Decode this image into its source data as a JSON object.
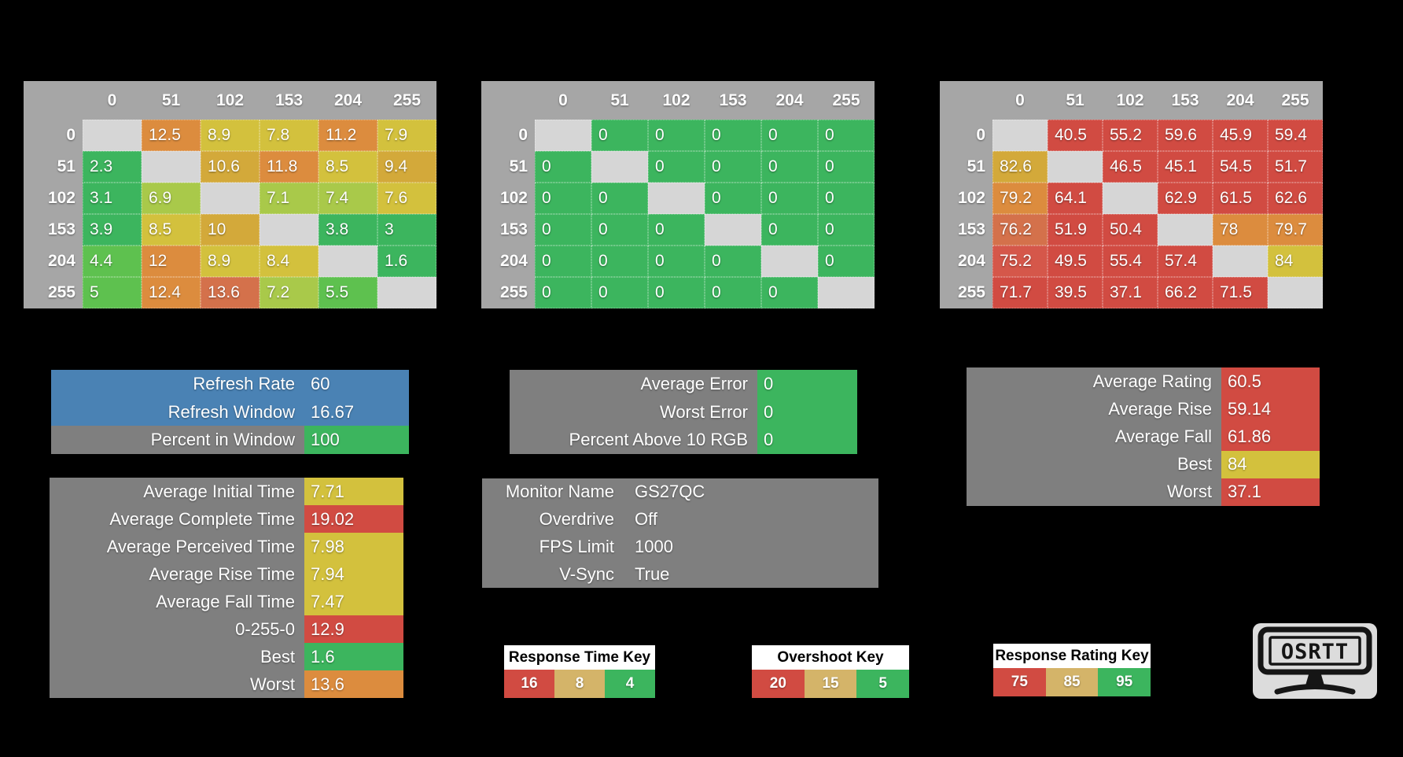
{
  "palette": {
    "green": "#3cb55e",
    "green2": "#5ec14f",
    "ygreen": "#a9c94a",
    "yellow": "#d3c13d",
    "gold": "#d3a93a",
    "orange": "#dc8c3e",
    "orangered": "#d4714b",
    "red": "#d14b42",
    "red2": "#d5574a",
    "tan": "#d4b469",
    "diag": "#d6d6d6",
    "headerGray": "#a6a6a6",
    "panelGray": "#7f7f7f",
    "blue": "#4a82b4"
  },
  "tables": [
    {
      "id": "response-time",
      "cols": [
        "0",
        "51",
        "102",
        "153",
        "204",
        "255"
      ],
      "rows": [
        "0",
        "51",
        "102",
        "153",
        "204",
        "255"
      ],
      "cells": [
        [
          null,
          [
            "12.5",
            "orange"
          ],
          [
            "8.9",
            "yellow"
          ],
          [
            "7.8",
            "yellow"
          ],
          [
            "11.2",
            "orange"
          ],
          [
            "7.9",
            "yellow"
          ]
        ],
        [
          [
            "2.3",
            "green"
          ],
          null,
          [
            "10.6",
            "gold"
          ],
          [
            "11.8",
            "orange"
          ],
          [
            "8.5",
            "yellow"
          ],
          [
            "9.4",
            "gold"
          ]
        ],
        [
          [
            "3.1",
            "green"
          ],
          [
            "6.9",
            "ygreen"
          ],
          null,
          [
            "7.1",
            "ygreen"
          ],
          [
            "7.4",
            "ygreen"
          ],
          [
            "7.6",
            "yellow"
          ]
        ],
        [
          [
            "3.9",
            "green"
          ],
          [
            "8.5",
            "yellow"
          ],
          [
            "10",
            "gold"
          ],
          null,
          [
            "3.8",
            "green"
          ],
          [
            "3",
            "green"
          ]
        ],
        [
          [
            "4.4",
            "green2"
          ],
          [
            "12",
            "orange"
          ],
          [
            "8.9",
            "yellow"
          ],
          [
            "8.4",
            "yellow"
          ],
          null,
          [
            "1.6",
            "green"
          ]
        ],
        [
          [
            "5",
            "green2"
          ],
          [
            "12.4",
            "orange"
          ],
          [
            "13.6",
            "orangered"
          ],
          [
            "7.2",
            "ygreen"
          ],
          [
            "5.5",
            "green2"
          ],
          null
        ]
      ]
    },
    {
      "id": "overshoot",
      "cols": [
        "0",
        "51",
        "102",
        "153",
        "204",
        "255"
      ],
      "rows": [
        "0",
        "51",
        "102",
        "153",
        "204",
        "255"
      ],
      "cells": [
        [
          null,
          [
            "0",
            "green"
          ],
          [
            "0",
            "green"
          ],
          [
            "0",
            "green"
          ],
          [
            "0",
            "green"
          ],
          [
            "0",
            "green"
          ]
        ],
        [
          [
            "0",
            "green"
          ],
          null,
          [
            "0",
            "green"
          ],
          [
            "0",
            "green"
          ],
          [
            "0",
            "green"
          ],
          [
            "0",
            "green"
          ]
        ],
        [
          [
            "0",
            "green"
          ],
          [
            "0",
            "green"
          ],
          null,
          [
            "0",
            "green"
          ],
          [
            "0",
            "green"
          ],
          [
            "0",
            "green"
          ]
        ],
        [
          [
            "0",
            "green"
          ],
          [
            "0",
            "green"
          ],
          [
            "0",
            "green"
          ],
          null,
          [
            "0",
            "green"
          ],
          [
            "0",
            "green"
          ]
        ],
        [
          [
            "0",
            "green"
          ],
          [
            "0",
            "green"
          ],
          [
            "0",
            "green"
          ],
          [
            "0",
            "green"
          ],
          null,
          [
            "0",
            "green"
          ]
        ],
        [
          [
            "0",
            "green"
          ],
          [
            "0",
            "green"
          ],
          [
            "0",
            "green"
          ],
          [
            "0",
            "green"
          ],
          [
            "0",
            "green"
          ],
          null
        ]
      ]
    },
    {
      "id": "response-rating",
      "cols": [
        "0",
        "51",
        "102",
        "153",
        "204",
        "255"
      ],
      "rows": [
        "0",
        "51",
        "102",
        "153",
        "204",
        "255"
      ],
      "cells": [
        [
          null,
          [
            "40.5",
            "red"
          ],
          [
            "55.2",
            "red"
          ],
          [
            "59.6",
            "red"
          ],
          [
            "45.9",
            "red"
          ],
          [
            "59.4",
            "red"
          ]
        ],
        [
          [
            "82.6",
            "gold"
          ],
          null,
          [
            "46.5",
            "red"
          ],
          [
            "45.1",
            "red"
          ],
          [
            "54.5",
            "red"
          ],
          [
            "51.7",
            "red"
          ]
        ],
        [
          [
            "79.2",
            "orange"
          ],
          [
            "64.1",
            "red"
          ],
          null,
          [
            "62.9",
            "red"
          ],
          [
            "61.5",
            "red"
          ],
          [
            "62.6",
            "red"
          ]
        ],
        [
          [
            "76.2",
            "orangered"
          ],
          [
            "51.9",
            "red"
          ],
          [
            "50.4",
            "red"
          ],
          null,
          [
            "78",
            "orange"
          ],
          [
            "79.7",
            "orange"
          ]
        ],
        [
          [
            "75.2",
            "red2"
          ],
          [
            "49.5",
            "red"
          ],
          [
            "55.4",
            "red"
          ],
          [
            "57.4",
            "red"
          ],
          null,
          [
            "84",
            "yellow"
          ]
        ],
        [
          [
            "71.7",
            "red"
          ],
          [
            "39.5",
            "red"
          ],
          [
            "37.1",
            "red"
          ],
          [
            "66.2",
            "red"
          ],
          [
            "71.5",
            "red"
          ],
          null
        ]
      ]
    }
  ],
  "panels": [
    {
      "id": "refresh",
      "rows": [
        {
          "label": "Refresh Rate",
          "value": "60",
          "label_bg": "blue",
          "value_bg": "blue"
        },
        {
          "label": "Refresh Window",
          "value": "16.67",
          "label_bg": "blue",
          "value_bg": "blue"
        },
        {
          "label": "Percent in Window",
          "value": "100",
          "label_bg": "panelGray",
          "value_bg": "green"
        }
      ]
    },
    {
      "id": "error",
      "rows": [
        {
          "label": "Average Error",
          "value": "0",
          "label_bg": "panelGray",
          "value_bg": "green"
        },
        {
          "label": "Worst Error",
          "value": "0",
          "label_bg": "panelGray",
          "value_bg": "green"
        },
        {
          "label": "Percent Above 10 RGB",
          "value": "0",
          "label_bg": "panelGray",
          "value_bg": "green"
        }
      ]
    },
    {
      "id": "rating",
      "rows": [
        {
          "label": "Average Rating",
          "value": "60.5",
          "label_bg": "panelGray",
          "value_bg": "red"
        },
        {
          "label": "Average Rise",
          "value": "59.14",
          "label_bg": "panelGray",
          "value_bg": "red"
        },
        {
          "label": "Average Fall",
          "value": "61.86",
          "label_bg": "panelGray",
          "value_bg": "red"
        },
        {
          "label": "Best",
          "value": "84",
          "label_bg": "panelGray",
          "value_bg": "yellow"
        },
        {
          "label": "Worst",
          "value": "37.1",
          "label_bg": "panelGray",
          "value_bg": "red"
        }
      ]
    },
    {
      "id": "times",
      "rows": [
        {
          "label": "Average Initial Time",
          "value": "7.71",
          "label_bg": "panelGray",
          "value_bg": "yellow"
        },
        {
          "label": "Average Complete Time",
          "value": "19.02",
          "label_bg": "panelGray",
          "value_bg": "red"
        },
        {
          "label": "Average Perceived Time",
          "value": "7.98",
          "label_bg": "panelGray",
          "value_bg": "yellow"
        },
        {
          "label": "Average Rise Time",
          "value": "7.94",
          "label_bg": "panelGray",
          "value_bg": "yellow"
        },
        {
          "label": "Average Fall Time",
          "value": "7.47",
          "label_bg": "panelGray",
          "value_bg": "yellow"
        },
        {
          "label": "0-255-0",
          "value": "12.9",
          "label_bg": "panelGray",
          "value_bg": "red"
        },
        {
          "label": "Best",
          "value": "1.6",
          "label_bg": "panelGray",
          "value_bg": "green"
        },
        {
          "label": "Worst",
          "value": "13.6",
          "label_bg": "panelGray",
          "value_bg": "orange"
        }
      ]
    },
    {
      "id": "monitor",
      "rows": [
        {
          "label": "Monitor Name",
          "value": "GS27QC",
          "label_bg": "panelGray",
          "value_bg": "panelGray"
        },
        {
          "label": "Overdrive",
          "value": "Off",
          "label_bg": "panelGray",
          "value_bg": "panelGray"
        },
        {
          "label": "FPS Limit",
          "value": "1000",
          "label_bg": "panelGray",
          "value_bg": "panelGray"
        },
        {
          "label": "V-Sync",
          "value": "True",
          "label_bg": "panelGray",
          "value_bg": "panelGray"
        }
      ]
    }
  ],
  "keys": [
    {
      "title": "Response Time Key",
      "cells": [
        [
          "16",
          "red"
        ],
        [
          "8",
          "tan"
        ],
        [
          "4",
          "green"
        ]
      ]
    },
    {
      "title": "Overshoot Key",
      "cells": [
        [
          "20",
          "red"
        ],
        [
          "15",
          "tan"
        ],
        [
          "5",
          "green"
        ]
      ]
    },
    {
      "title": "Response Rating Key",
      "cells": [
        [
          "75",
          "red"
        ],
        [
          "85",
          "tan"
        ],
        [
          "95",
          "green"
        ]
      ]
    }
  ],
  "logo": {
    "text": "OSRTT"
  }
}
